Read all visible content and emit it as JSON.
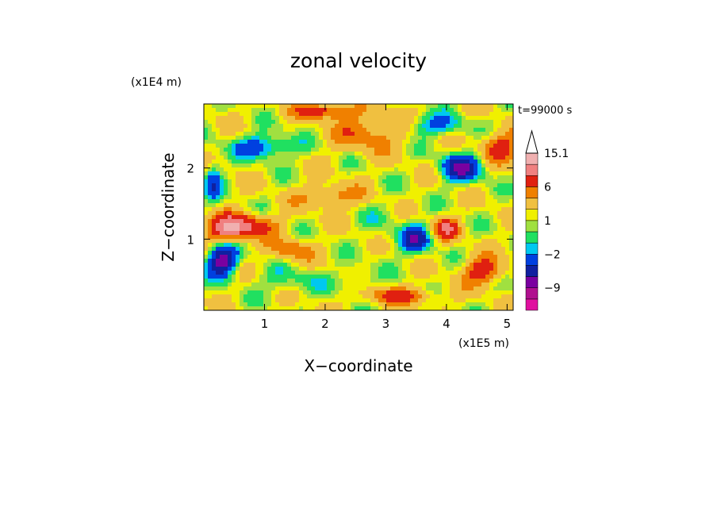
{
  "chart_data": {
    "type": "heatmap",
    "title": "zonal velocity",
    "xlabel": "X−coordinate",
    "ylabel": "Z−coordinate",
    "x_unit_label": "(x1E5 m)",
    "y_unit_label": "(x1E4 m)",
    "time_label": "t=99000 s",
    "xlim": [
      0,
      5.1
    ],
    "ylim": [
      0,
      2.9
    ],
    "x_ticks": [
      1,
      2,
      3,
      4,
      5
    ],
    "x_tick_labels": [
      "1",
      "2",
      "3",
      "4",
      "5"
    ],
    "y_ticks": [
      1,
      2
    ],
    "y_tick_labels": [
      "1",
      "2"
    ],
    "colorbar": {
      "levels": [
        -16,
        -12,
        -9,
        -6,
        -4,
        -2,
        -1,
        0,
        1,
        2,
        4,
        6,
        9,
        12,
        15.1
      ],
      "labels": [
        {
          "value": 15.1,
          "text": "15.1"
        },
        {
          "value": 6,
          "text": "6"
        },
        {
          "value": 1,
          "text": "1"
        },
        {
          "value": -2,
          "text": "−2"
        },
        {
          "value": -9,
          "text": "−9"
        }
      ],
      "colors": [
        "#e0109f",
        "#b0108f",
        "#7a00a0",
        "#1020a0",
        "#0040e0",
        "#00c8f0",
        "#20e060",
        "#a0e040",
        "#f0f000",
        "#f0c040",
        "#f08000",
        "#e02010",
        "#f08080",
        "#f0b0b0"
      ],
      "extend_top": true
    },
    "field": {
      "background": 1.5,
      "blobs": [
        {
          "x": 0.3,
          "z": 0.7,
          "rx": 0.25,
          "rz": 0.22,
          "v": -9
        },
        {
          "x": 1.0,
          "z": 2.3,
          "rx": 0.5,
          "rz": 0.17,
          "v": -5
        },
        {
          "x": 0.4,
          "z": 1.15,
          "rx": 0.35,
          "rz": 0.18,
          "v": 9
        },
        {
          "x": 0.8,
          "z": 1.2,
          "rx": 0.45,
          "rz": 0.15,
          "v": 5
        },
        {
          "x": 1.4,
          "z": 0.4,
          "rx": 0.6,
          "rz": 0.18,
          "v": -2
        },
        {
          "x": 1.4,
          "z": 0.85,
          "rx": 0.35,
          "rz": 0.15,
          "v": 4
        },
        {
          "x": 2.1,
          "z": 1.6,
          "rx": 0.5,
          "rz": 0.15,
          "v": 4
        },
        {
          "x": 2.7,
          "z": 2.5,
          "rx": 0.6,
          "rz": 0.25,
          "v": 4
        },
        {
          "x": 2.5,
          "z": 0.4,
          "rx": 0.3,
          "rz": 0.2,
          "v": -2
        },
        {
          "x": 3.0,
          "z": 1.2,
          "rx": 0.4,
          "rz": 0.45,
          "v": -1
        },
        {
          "x": 3.5,
          "z": 1.0,
          "rx": 0.25,
          "rz": 0.2,
          "v": -6
        },
        {
          "x": 3.8,
          "z": 2.6,
          "rx": 0.5,
          "rz": 0.15,
          "v": -4
        },
        {
          "x": 4.25,
          "z": 2.0,
          "rx": 0.35,
          "rz": 0.2,
          "v": -7
        },
        {
          "x": 4.0,
          "z": 1.15,
          "rx": 0.2,
          "rz": 0.15,
          "v": 7
        },
        {
          "x": 4.6,
          "z": 0.55,
          "rx": 0.3,
          "rz": 0.18,
          "v": 7
        },
        {
          "x": 4.9,
          "z": 2.3,
          "rx": 0.3,
          "rz": 0.2,
          "v": 6
        },
        {
          "x": 3.2,
          "z": 0.2,
          "rx": 0.6,
          "rz": 0.12,
          "v": 5
        },
        {
          "x": 0.15,
          "z": 1.8,
          "rx": 0.15,
          "rz": 0.3,
          "v": -4
        },
        {
          "x": 2.0,
          "z": 2.8,
          "rx": 0.5,
          "rz": 0.1,
          "v": 6
        }
      ]
    }
  }
}
